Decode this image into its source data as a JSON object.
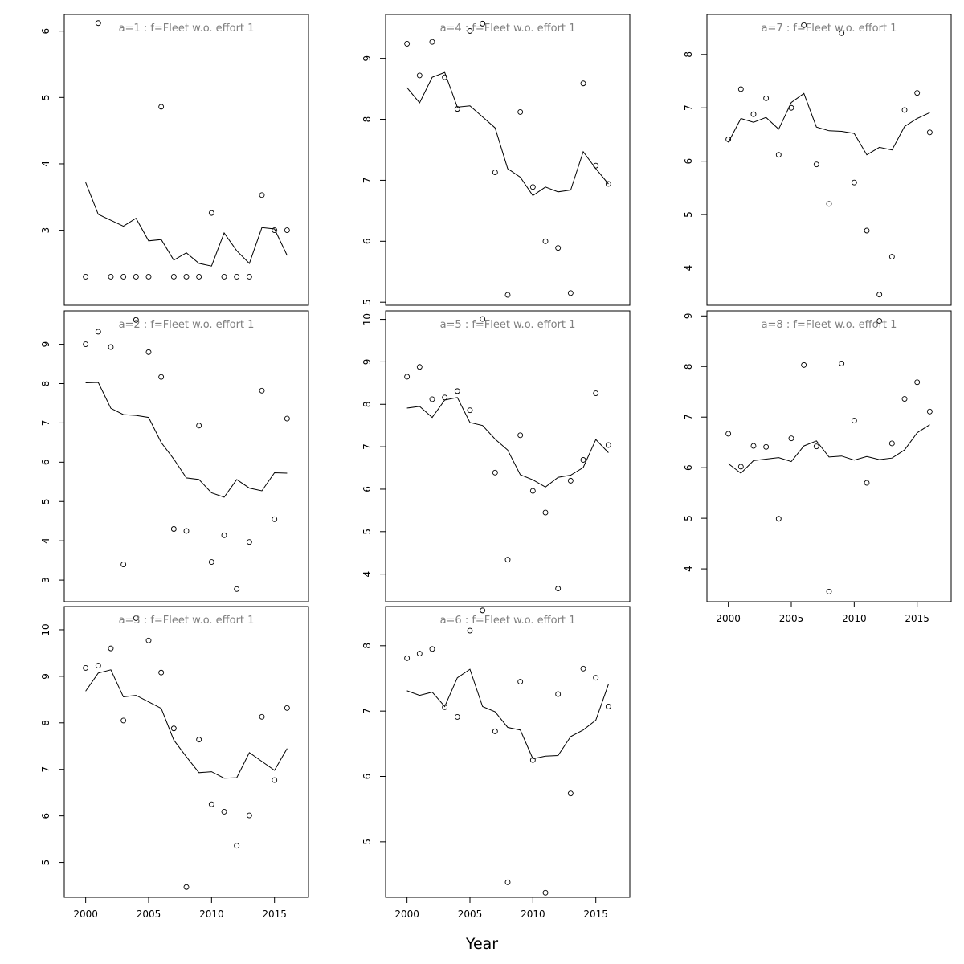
{
  "chart_data": {
    "type": "scatter",
    "xlabel": "Year",
    "xlim": [
      1998.3,
      2017.7
    ],
    "x_ticks": [
      2000,
      2005,
      2010,
      2015
    ],
    "years": [
      2000,
      2001,
      2002,
      2003,
      2004,
      2005,
      2006,
      2007,
      2008,
      2009,
      2010,
      2011,
      2012,
      2013,
      2014,
      2015,
      2016
    ],
    "panels": [
      {
        "title": "a=1  :  f=Fleet w.o. effort 1",
        "ylim": [
          1.87,
          6.25
        ],
        "y_ticks": [
          3,
          4,
          5,
          6
        ],
        "observed": [
          2.3,
          6.12,
          2.3,
          2.3,
          2.3,
          2.3,
          4.86,
          2.3,
          2.3,
          2.3,
          3.26,
          2.3,
          2.3,
          2.3,
          3.53,
          3.0,
          3.0
        ],
        "fitted": [
          3.72,
          3.24,
          3.15,
          3.06,
          3.18,
          2.84,
          2.86,
          2.55,
          2.66,
          2.5,
          2.46,
          2.96,
          2.69,
          2.5,
          3.04,
          3.02,
          2.62
        ]
      },
      {
        "title": "a=2  :  f=Fleet w.o. effort 1",
        "ylim": [
          2.45,
          9.85
        ],
        "y_ticks": [
          3,
          4,
          5,
          6,
          7,
          8,
          9
        ],
        "observed": [
          9.0,
          9.32,
          8.93,
          3.4,
          9.62,
          8.8,
          8.17,
          4.3,
          4.25,
          6.93,
          3.46,
          4.14,
          2.77,
          3.97,
          7.82,
          4.55,
          7.11
        ],
        "fitted": [
          8.02,
          8.03,
          7.37,
          7.21,
          7.19,
          7.14,
          6.5,
          6.08,
          5.6,
          5.56,
          5.22,
          5.11,
          5.56,
          5.34,
          5.27,
          5.73,
          5.72
        ]
      },
      {
        "title": "a=3  :  f=Fleet w.o. effort 1",
        "ylim": [
          4.25,
          10.5
        ],
        "y_ticks": [
          5,
          6,
          7,
          8,
          9,
          10
        ],
        "observed": [
          9.18,
          9.23,
          9.6,
          8.05,
          10.25,
          9.77,
          9.08,
          7.88,
          4.47,
          7.64,
          6.25,
          6.09,
          5.36,
          6.01,
          8.13,
          6.77,
          8.32
        ],
        "fitted": [
          8.68,
          9.07,
          9.14,
          8.56,
          8.59,
          8.45,
          8.31,
          7.63,
          7.27,
          6.93,
          6.95,
          6.81,
          6.82,
          7.36,
          7.17,
          6.98,
          7.45
        ]
      },
      {
        "title": "a=4  :  f=Fleet w.o. effort 1",
        "ylim": [
          4.95,
          9.72
        ],
        "y_ticks": [
          5,
          6,
          7,
          8,
          9
        ],
        "observed": [
          9.24,
          8.72,
          9.27,
          8.69,
          8.17,
          9.45,
          9.57,
          7.13,
          5.12,
          8.12,
          6.89,
          6.0,
          5.89,
          5.15,
          8.59,
          7.24,
          6.94
        ],
        "fitted": [
          8.52,
          8.27,
          8.69,
          8.77,
          8.2,
          8.22,
          8.04,
          7.86,
          7.19,
          7.05,
          6.75,
          6.89,
          6.81,
          6.84,
          7.47,
          7.19,
          6.94
        ]
      },
      {
        "title": "a=5  :  f=Fleet w.o. effort 1",
        "ylim": [
          3.35,
          10.2
        ],
        "y_ticks": [
          4,
          5,
          6,
          7,
          8,
          9,
          10
        ],
        "observed": [
          8.65,
          8.88,
          8.12,
          8.16,
          8.31,
          7.86,
          10.01,
          6.39,
          4.34,
          7.27,
          5.96,
          5.45,
          3.66,
          6.2,
          6.69,
          8.26,
          7.04
        ],
        "fitted": [
          7.91,
          7.95,
          7.69,
          8.1,
          8.16,
          7.57,
          7.5,
          7.18,
          6.92,
          6.34,
          6.22,
          6.05,
          6.28,
          6.33,
          6.51,
          7.17,
          6.86
        ]
      },
      {
        "title": "a=6  :  f=Fleet w.o. effort 1",
        "ylim": [
          4.15,
          8.6
        ],
        "y_ticks": [
          5,
          6,
          7,
          8
        ],
        "observed": [
          7.81,
          7.88,
          7.95,
          7.06,
          6.91,
          8.23,
          8.54,
          6.69,
          4.38,
          7.45,
          6.25,
          4.22,
          7.26,
          5.74,
          7.65,
          7.51,
          7.07
        ],
        "fitted": [
          7.31,
          7.24,
          7.29,
          7.07,
          7.51,
          7.64,
          7.07,
          6.99,
          6.75,
          6.71,
          6.27,
          6.31,
          6.32,
          6.61,
          6.71,
          6.86,
          7.41
        ]
      },
      {
        "title": "a=7  :  f=Fleet w.o. effort 1",
        "ylim": [
          3.3,
          8.75
        ],
        "y_ticks": [
          4,
          5,
          6,
          7,
          8
        ],
        "observed": [
          6.41,
          7.35,
          6.88,
          7.18,
          6.12,
          7.0,
          8.55,
          5.94,
          5.2,
          8.4,
          5.6,
          4.7,
          3.5,
          4.21,
          6.96,
          7.28,
          6.54
        ],
        "fitted": [
          6.35,
          6.8,
          6.73,
          6.82,
          6.6,
          7.1,
          7.27,
          6.64,
          6.57,
          6.56,
          6.52,
          6.12,
          6.26,
          6.21,
          6.65,
          6.8,
          6.91
        ]
      },
      {
        "title": "a=8  :  f=Fleet w.o. effort 1",
        "ylim": [
          3.35,
          9.1
        ],
        "y_ticks": [
          4,
          5,
          6,
          7,
          8,
          9
        ],
        "observed": [
          6.67,
          6.02,
          6.43,
          6.41,
          4.99,
          6.58,
          8.03,
          6.42,
          3.55,
          8.06,
          6.93,
          5.7,
          8.9,
          6.48,
          7.36,
          7.69,
          7.11
        ],
        "fitted": [
          6.08,
          5.89,
          6.14,
          6.17,
          6.2,
          6.12,
          6.43,
          6.53,
          6.21,
          6.23,
          6.15,
          6.22,
          6.16,
          6.19,
          6.35,
          6.69,
          6.85
        ]
      }
    ]
  }
}
